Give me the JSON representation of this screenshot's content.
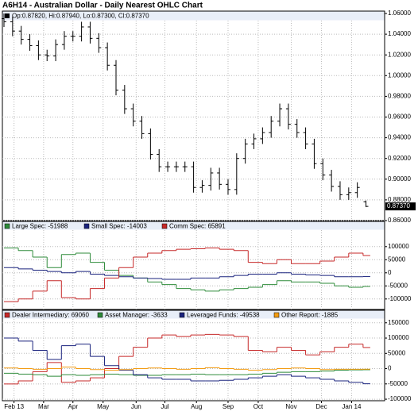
{
  "title": "A6H14 - Australian Dollar - Daily Nearest OHLC Chart",
  "chart_data": [
    {
      "type": "ohlc",
      "legend": "Op:0.87820, Hi:0.87940, Lo:0.87300, Cl:0.87370",
      "color": "#000000",
      "xlim": [
        0,
        265
      ],
      "x": [
        0,
        6,
        12,
        18,
        24,
        30,
        36,
        42,
        48,
        54,
        60,
        66,
        72,
        78,
        84,
        90,
        96,
        102,
        108,
        114,
        120,
        126,
        132,
        138,
        144,
        150,
        156,
        162,
        168,
        174,
        180,
        186,
        192,
        198,
        204,
        210,
        216,
        222,
        228,
        234,
        240,
        246,
        252
      ],
      "open": [
        1.055,
        1.052,
        1.043,
        1.035,
        1.029,
        1.02,
        1.019,
        1.03,
        1.038,
        1.038,
        1.047,
        1.036,
        1.027,
        1.01,
        0.986,
        0.968,
        0.956,
        0.944,
        0.924,
        0.912,
        0.912,
        0.912,
        0.912,
        0.892,
        0.894,
        0.906,
        0.895,
        0.89,
        0.92,
        0.934,
        0.939,
        0.945,
        0.956,
        0.968,
        0.953,
        0.945,
        0.934,
        0.915,
        0.904,
        0.893,
        0.885,
        0.887,
        0.8782
      ],
      "high": [
        1.06,
        1.057,
        1.048,
        1.04,
        1.034,
        1.025,
        1.035,
        1.043,
        1.043,
        1.052,
        1.052,
        1.041,
        1.032,
        1.015,
        0.991,
        0.973,
        0.961,
        0.949,
        0.929,
        0.917,
        0.917,
        0.917,
        0.917,
        0.899,
        0.911,
        0.911,
        0.9,
        0.925,
        0.939,
        0.944,
        0.95,
        0.961,
        0.973,
        0.973,
        0.958,
        0.95,
        0.939,
        0.92,
        0.909,
        0.898,
        0.892,
        0.897,
        0.8794
      ],
      "low": [
        1.047,
        1.038,
        1.03,
        1.024,
        1.015,
        1.014,
        1.014,
        1.025,
        1.033,
        1.033,
        1.031,
        1.022,
        1.005,
        0.981,
        0.963,
        0.951,
        0.939,
        0.919,
        0.907,
        0.907,
        0.907,
        0.907,
        0.887,
        0.887,
        0.889,
        0.89,
        0.885,
        0.885,
        0.915,
        0.929,
        0.934,
        0.94,
        0.951,
        0.948,
        0.94,
        0.929,
        0.91,
        0.899,
        0.888,
        0.88,
        0.88,
        0.882,
        0.873
      ],
      "close": [
        1.052,
        1.043,
        1.035,
        1.029,
        1.02,
        1.019,
        1.03,
        1.038,
        1.038,
        1.047,
        1.036,
        1.027,
        1.01,
        0.986,
        0.968,
        0.956,
        0.944,
        0.924,
        0.912,
        0.912,
        0.912,
        0.912,
        0.892,
        0.894,
        0.906,
        0.895,
        0.89,
        0.92,
        0.934,
        0.939,
        0.945,
        0.956,
        0.968,
        0.953,
        0.945,
        0.934,
        0.915,
        0.904,
        0.893,
        0.885,
        0.887,
        0.892,
        0.8737
      ],
      "ylim": [
        0.86,
        1.06
      ],
      "yticks": [
        {
          "value": 1.06,
          "label": "1.06000"
        },
        {
          "value": 1.04,
          "label": "1.04000"
        },
        {
          "value": 1.02,
          "label": "1.02000"
        },
        {
          "value": 1.0,
          "label": "1.00000"
        },
        {
          "value": 0.98,
          "label": "0.98000"
        },
        {
          "value": 0.96,
          "label": "0.96000"
        },
        {
          "value": 0.94,
          "label": "0.94000"
        },
        {
          "value": 0.92,
          "label": "0.92000"
        },
        {
          "value": 0.9,
          "label": "0.90000"
        },
        {
          "value": 0.88,
          "label": "0.88000"
        },
        {
          "value": 0.86,
          "label": "0.86000"
        }
      ],
      "last_price": {
        "value": 0.8737,
        "label": "0.87370"
      },
      "grid": true
    },
    {
      "type": "step",
      "xlim": [
        0,
        265
      ],
      "x": [
        0,
        10,
        20,
        30,
        40,
        50,
        60,
        70,
        80,
        90,
        100,
        110,
        120,
        130,
        140,
        150,
        160,
        170,
        180,
        190,
        200,
        210,
        220,
        230,
        240,
        250
      ],
      "ylim": [
        -140000,
        160000
      ],
      "yticks": [
        100000,
        50000,
        0,
        -50000,
        -100000
      ],
      "grid": true,
      "series": [
        {
          "name": "Large Spec: -51988",
          "color": "#2e8b3a",
          "values": [
            95000,
            85000,
            60000,
            20000,
            70000,
            75000,
            40000,
            10000,
            -10000,
            -20000,
            -35000,
            -45000,
            -60000,
            -65000,
            -70000,
            -65000,
            -60000,
            -55000,
            -45000,
            -30000,
            -35000,
            -35000,
            -40000,
            -50000,
            -55000,
            -51988
          ]
        },
        {
          "name": "Small Spec: -14003",
          "color": "#1a237e",
          "values": [
            20000,
            15000,
            10000,
            5000,
            0,
            5000,
            -5000,
            -10000,
            -15000,
            -20000,
            -22000,
            -25000,
            -25000,
            -20000,
            -20000,
            -15000,
            -10000,
            -5000,
            -5000,
            0,
            -5000,
            -8000,
            -10000,
            -15000,
            -15000,
            -14003
          ]
        },
        {
          "name": "Comm Spec: 65891",
          "color": "#c62828",
          "values": [
            -110000,
            -100000,
            -70000,
            -30000,
            -95000,
            -100000,
            -60000,
            -20000,
            20000,
            60000,
            75000,
            85000,
            90000,
            92000,
            95000,
            90000,
            85000,
            40000,
            35000,
            50000,
            35000,
            35000,
            45000,
            60000,
            75000,
            65891
          ]
        }
      ]
    },
    {
      "type": "step",
      "xlim": [
        0,
        265
      ],
      "x": [
        0,
        10,
        20,
        30,
        40,
        50,
        60,
        70,
        80,
        90,
        100,
        110,
        120,
        130,
        140,
        150,
        160,
        170,
        180,
        190,
        200,
        210,
        220,
        230,
        240,
        250
      ],
      "ylim": [
        -105000,
        165000
      ],
      "yticks": [
        150000,
        100000,
        50000,
        0,
        -50000,
        -100000
      ],
      "grid": true,
      "xticks": [
        {
          "value": 7,
          "label": "Feb 13"
        },
        {
          "value": 27.6,
          "label": "Mar"
        },
        {
          "value": 48,
          "label": "Apr"
        },
        {
          "value": 69,
          "label": "May"
        },
        {
          "value": 92,
          "label": "Jun"
        },
        {
          "value": 112,
          "label": "Jul"
        },
        {
          "value": 134,
          "label": "Aug"
        },
        {
          "value": 156,
          "label": "Sep"
        },
        {
          "value": 177,
          "label": "Oct"
        },
        {
          "value": 200,
          "label": "Nov"
        },
        {
          "value": 221,
          "label": "Dec"
        },
        {
          "value": 242,
          "label": "Jan 14"
        }
      ],
      "series": [
        {
          "name": "Dealer Intermediary: 69060",
          "color": "#c62828",
          "values": [
            -50000,
            -40000,
            -10000,
            20000,
            -45000,
            -40000,
            -30000,
            0,
            40000,
            70000,
            100000,
            110000,
            105000,
            110000,
            112000,
            110000,
            105000,
            60000,
            55000,
            70000,
            60000,
            45000,
            55000,
            70000,
            80000,
            69060
          ]
        },
        {
          "name": "Asset Manager: -3633",
          "color": "#2e8b3a",
          "values": [
            -15000,
            -18000,
            -20000,
            -25000,
            -20000,
            -22000,
            -20000,
            -18000,
            -20000,
            -22000,
            -22000,
            -20000,
            -20000,
            -18000,
            -20000,
            -20000,
            -20000,
            -18000,
            -15000,
            -12000,
            -10000,
            -10000,
            -8000,
            -5000,
            -4000,
            -3633
          ]
        },
        {
          "name": "Leveraged Funds: -49538",
          "color": "#1a237e",
          "values": [
            100000,
            90000,
            60000,
            30000,
            75000,
            80000,
            40000,
            10000,
            -5000,
            -20000,
            -30000,
            -35000,
            -35000,
            -40000,
            -40000,
            -38000,
            -35000,
            -30000,
            -25000,
            -20000,
            -25000,
            -30000,
            -35000,
            -40000,
            -45000,
            -49538
          ]
        },
        {
          "name": "Other Report: -1885",
          "color": "#f39c12",
          "values": [
            2000,
            0,
            -2000,
            0,
            5000,
            0,
            -3000,
            -5000,
            -3000,
            0,
            2000,
            0,
            -2000,
            0,
            3000,
            0,
            -2000,
            -5000,
            -3000,
            0,
            2000,
            0,
            -3000,
            -2000,
            -2000,
            -1885
          ]
        }
      ]
    }
  ]
}
